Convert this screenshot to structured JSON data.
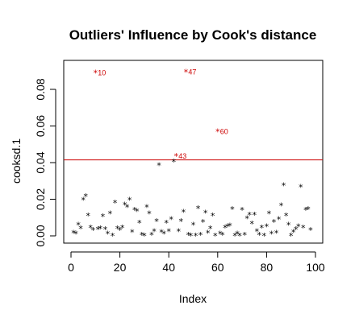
{
  "chart_data": {
    "type": "scatter",
    "title": "Outliers' Influence by Cook's distance",
    "xlabel": "Index",
    "ylabel": "cooksd.1",
    "xlim": [
      0,
      100
    ],
    "ylim": [
      0,
      0.09
    ],
    "x_ticks": [
      0,
      20,
      40,
      60,
      80,
      100
    ],
    "y_ticks": [
      0.0,
      0.02,
      0.04,
      0.06,
      0.08
    ],
    "y_tick_labels": [
      "0.00",
      "0.02",
      "0.04",
      "0.06",
      "0.08"
    ],
    "marker": "*",
    "threshold": 0.0415,
    "threshold_color": "#cc0000",
    "outlier_color": "#cc0000",
    "outliers": [
      {
        "x": 10,
        "y": 0.089,
        "label": "10"
      },
      {
        "x": 47,
        "y": 0.0895,
        "label": "47"
      },
      {
        "x": 60,
        "y": 0.057,
        "label": "60"
      },
      {
        "x": 43,
        "y": 0.0435,
        "label": "43"
      }
    ],
    "points": [
      [
        1,
        0.0015
      ],
      [
        2,
        0.001
      ],
      [
        3,
        0.006
      ],
      [
        4,
        0.004
      ],
      [
        5,
        0.0195
      ],
      [
        6,
        0.0215
      ],
      [
        7,
        0.011
      ],
      [
        8,
        0.0045
      ],
      [
        9,
        0.003
      ],
      [
        11,
        0.0035
      ],
      [
        12,
        0.004
      ],
      [
        13,
        0.0105
      ],
      [
        14,
        0.0035
      ],
      [
        15,
        0.001
      ],
      [
        16,
        0.012
      ],
      [
        17,
        0.0
      ],
      [
        18,
        0.018
      ],
      [
        19,
        0.004
      ],
      [
        20,
        0.003
      ],
      [
        21,
        0.0045
      ],
      [
        22,
        0.017
      ],
      [
        23,
        0.0155
      ],
      [
        24,
        0.0195
      ],
      [
        25,
        0.002
      ],
      [
        26,
        0.014
      ],
      [
        27,
        0.0135
      ],
      [
        28,
        0.007
      ],
      [
        29,
        0.0005
      ],
      [
        30,
        0.0
      ],
      [
        31,
        0.0155
      ],
      [
        32,
        0.012
      ],
      [
        33,
        0.0005
      ],
      [
        34,
        0.0025
      ],
      [
        35,
        0.008
      ],
      [
        36,
        0.0385
      ],
      [
        37,
        0.002
      ],
      [
        38,
        0.001
      ],
      [
        39,
        0.007
      ],
      [
        40,
        0.0025
      ],
      [
        41,
        0.009
      ],
      [
        42,
        0.0405
      ],
      [
        44,
        0.0025
      ],
      [
        45,
        0.008
      ],
      [
        46,
        0.013
      ],
      [
        48,
        0.0005
      ],
      [
        49,
        0.0
      ],
      [
        50,
        0.006
      ],
      [
        51,
        0.0
      ],
      [
        52,
        0.015
      ],
      [
        53,
        0.0005
      ],
      [
        54,
        0.0075
      ],
      [
        55,
        0.0125
      ],
      [
        56,
        0.0015
      ],
      [
        57,
        0.004
      ],
      [
        58,
        0.011
      ],
      [
        59,
        0.0
      ],
      [
        61,
        0.001
      ],
      [
        62,
        0.0005
      ],
      [
        63,
        0.0045
      ],
      [
        64,
        0.005
      ],
      [
        65,
        0.0055
      ],
      [
        66,
        0.0145
      ],
      [
        67,
        0.0
      ],
      [
        68,
        0.001
      ],
      [
        69,
        0.0
      ],
      [
        70,
        0.014
      ],
      [
        71,
        0.0005
      ],
      [
        72,
        0.0095
      ],
      [
        73,
        0.0115
      ],
      [
        74,
        0.0065
      ],
      [
        75,
        0.0115
      ],
      [
        76,
        0.0025
      ],
      [
        77,
        0.0005
      ],
      [
        78,
        0.0045
      ],
      [
        79,
        0.0
      ],
      [
        80,
        0.005
      ],
      [
        81,
        0.012
      ],
      [
        82,
        0.001
      ],
      [
        83,
        0.0075
      ],
      [
        84,
        0.0015
      ],
      [
        85,
        0.009
      ],
      [
        86,
        0.0165
      ],
      [
        87,
        0.0275
      ],
      [
        88,
        0.011
      ],
      [
        89,
        0.006
      ],
      [
        90,
        0.0
      ],
      [
        91,
        0.002
      ],
      [
        92,
        0.0035
      ],
      [
        93,
        0.005
      ],
      [
        94,
        0.0265
      ],
      [
        95,
        0.0045
      ],
      [
        96,
        0.014
      ],
      [
        97,
        0.0145
      ],
      [
        98,
        0.003
      ]
    ]
  }
}
